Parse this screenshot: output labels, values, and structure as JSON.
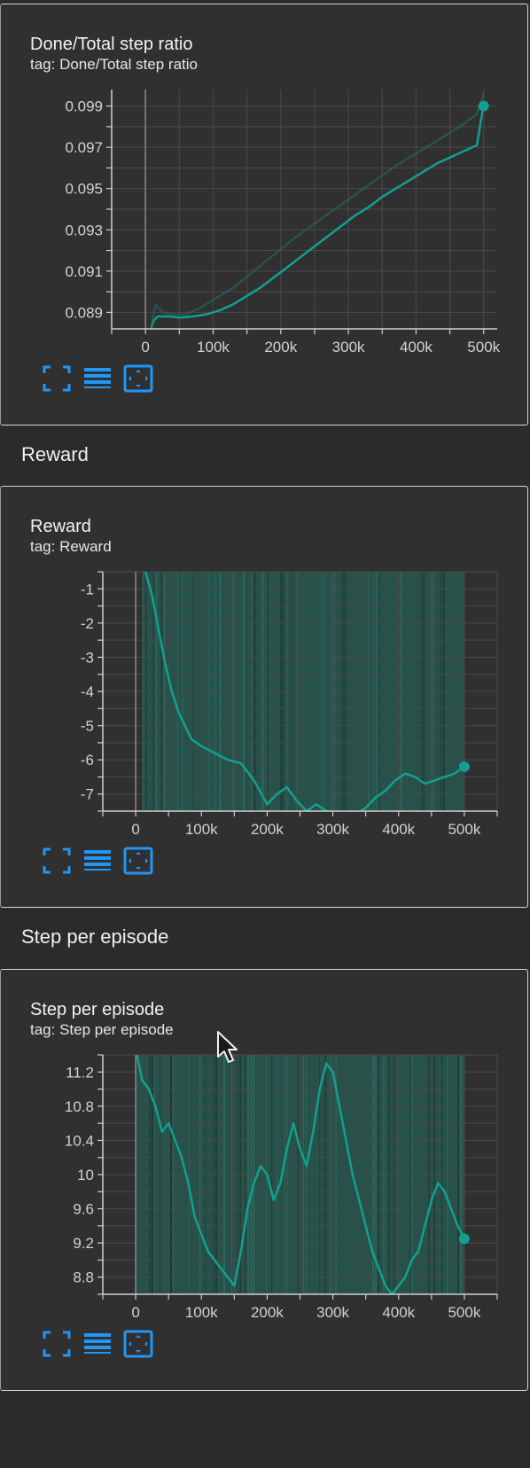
{
  "cards": [
    {
      "title": "Done/Total step ratio",
      "tag": "tag: Done/Total step ratio"
    },
    {
      "title": "Reward",
      "tag": "tag: Reward"
    },
    {
      "title": "Step per episode",
      "tag": "tag: Step per episode"
    }
  ],
  "sections": {
    "reward": "Reward",
    "step_per_episode": "Step per episode"
  },
  "icons": {
    "fit": "fullscreen-icon",
    "log": "list-lines-icon",
    "pan": "fit-domain-icon"
  },
  "colors": {
    "series": "#12a090",
    "series_faint": "#2a6e64",
    "band": "#245c52",
    "icon": "#2196f3",
    "grid": "#4a4a4a",
    "axis": "#cfcfcf",
    "card_bg": "#303030",
    "page_bg": "#2b2b2b"
  },
  "chart_data": [
    {
      "type": "line",
      "title": "Done/Total step ratio",
      "xlabel": "",
      "ylabel": "",
      "xlim": [
        -50000,
        520000
      ],
      "ylim": [
        0.0882,
        0.0998
      ],
      "x_ticks": [
        0,
        100000,
        200000,
        300000,
        400000,
        500000
      ],
      "x_tick_labels": [
        "0",
        "100k",
        "200k",
        "300k",
        "400k",
        "500k"
      ],
      "y_ticks": [
        0.089,
        0.091,
        0.093,
        0.095,
        0.097,
        0.099
      ],
      "y_tick_labels": [
        "0.089",
        "0.091",
        "0.093",
        "0.095",
        "0.097",
        "0.099"
      ],
      "grid": true,
      "series": [
        {
          "role": "smoothed",
          "x": [
            8000,
            12000,
            18000,
            25000,
            35000,
            50000,
            70000,
            90000,
            110000,
            130000,
            150000,
            170000,
            190000,
            210000,
            230000,
            250000,
            270000,
            290000,
            310000,
            330000,
            350000,
            370000,
            390000,
            410000,
            430000,
            450000,
            470000,
            490000,
            500000
          ],
          "y": [
            0.0882,
            0.0886,
            0.0888,
            0.0888,
            0.0888,
            0.08875,
            0.0888,
            0.0889,
            0.0891,
            0.0894,
            0.0898,
            0.0902,
            0.0907,
            0.0912,
            0.0917,
            0.0922,
            0.0927,
            0.0932,
            0.0937,
            0.0941,
            0.0946,
            0.095,
            0.0954,
            0.0958,
            0.0962,
            0.0965,
            0.0968,
            0.0971,
            0.0991
          ]
        },
        {
          "role": "raw",
          "x": [
            8000,
            15000,
            25000,
            40000,
            60000,
            80000,
            100000,
            130000,
            160000,
            190000,
            220000,
            250000,
            280000,
            310000,
            340000,
            370000,
            400000,
            430000,
            460000,
            490000,
            500000
          ],
          "y": [
            0.0882,
            0.0894,
            0.089,
            0.0889,
            0.0889,
            0.0892,
            0.0896,
            0.0902,
            0.091,
            0.0918,
            0.0926,
            0.0933,
            0.094,
            0.0947,
            0.0954,
            0.0961,
            0.0967,
            0.0973,
            0.0979,
            0.0986,
            0.0996
          ]
        }
      ],
      "last_point": {
        "x": 500000,
        "y": 0.099
      }
    },
    {
      "type": "line",
      "title": "Reward",
      "xlabel": "",
      "ylabel": "",
      "xlim": [
        -50000,
        550000
      ],
      "ylim": [
        -7.5,
        -0.5
      ],
      "x_ticks": [
        0,
        100000,
        200000,
        300000,
        400000,
        500000
      ],
      "x_tick_labels": [
        "0",
        "100k",
        "200k",
        "300k",
        "400k",
        "500k"
      ],
      "y_ticks": [
        -1,
        -2,
        -3,
        -4,
        -5,
        -6,
        -7
      ],
      "y_tick_labels": [
        "-1",
        "-2",
        "-3",
        "-4",
        "-5",
        "-6",
        "-7"
      ],
      "grid": true,
      "band": {
        "x_start": 10000,
        "x_end": 500000,
        "y_top": -0.5,
        "y_bottom": -7.5
      },
      "series": [
        {
          "role": "smoothed",
          "x": [
            15000,
            25000,
            35000,
            45000,
            55000,
            65000,
            75000,
            85000,
            100000,
            120000,
            140000,
            160000,
            180000,
            200000,
            215000,
            230000,
            245000,
            260000,
            275000,
            290000,
            305000,
            320000,
            335000,
            350000,
            365000,
            380000,
            395000,
            410000,
            425000,
            440000,
            455000,
            470000,
            485000,
            500000
          ],
          "y": [
            -0.5,
            -1.2,
            -2.2,
            -3.2,
            -4.0,
            -4.6,
            -5.0,
            -5.4,
            -5.6,
            -5.8,
            -6.0,
            -6.1,
            -6.6,
            -7.3,
            -7.0,
            -6.8,
            -7.2,
            -7.5,
            -7.3,
            -7.5,
            -7.6,
            -7.55,
            -7.6,
            -7.4,
            -7.1,
            -6.9,
            -6.6,
            -6.4,
            -6.5,
            -6.7,
            -6.6,
            -6.5,
            -6.4,
            -6.2
          ]
        }
      ],
      "last_point": {
        "x": 500000,
        "y": -6.2
      }
    },
    {
      "type": "line",
      "title": "Step per episode",
      "xlabel": "",
      "ylabel": "",
      "xlim": [
        -50000,
        550000
      ],
      "ylim": [
        8.6,
        11.4
      ],
      "x_ticks": [
        0,
        100000,
        200000,
        300000,
        400000,
        500000
      ],
      "x_tick_labels": [
        "0",
        "100k",
        "200k",
        "300k",
        "400k",
        "500k"
      ],
      "y_ticks": [
        8.8,
        9.2,
        9.6,
        10,
        10.4,
        10.8,
        11.2
      ],
      "y_tick_labels": [
        "8.8",
        "9.2",
        "9.6",
        "10",
        "10.4",
        "10.8",
        "11.2"
      ],
      "grid": true,
      "band": {
        "x_start": 0,
        "x_end": 500000,
        "y_top": 11.4,
        "y_bottom": 8.6
      },
      "series": [
        {
          "role": "smoothed",
          "x": [
            2000,
            10000,
            20000,
            30000,
            40000,
            50000,
            60000,
            70000,
            80000,
            90000,
            100000,
            110000,
            120000,
            130000,
            140000,
            150000,
            160000,
            170000,
            180000,
            190000,
            200000,
            210000,
            220000,
            230000,
            240000,
            250000,
            260000,
            270000,
            280000,
            290000,
            300000,
            310000,
            320000,
            330000,
            340000,
            350000,
            360000,
            370000,
            380000,
            390000,
            400000,
            410000,
            420000,
            430000,
            440000,
            450000,
            460000,
            470000,
            480000,
            490000,
            500000
          ],
          "y": [
            11.4,
            11.1,
            11.0,
            10.8,
            10.5,
            10.6,
            10.4,
            10.2,
            9.9,
            9.5,
            9.3,
            9.1,
            9.0,
            8.9,
            8.8,
            8.7,
            9.1,
            9.6,
            9.9,
            10.1,
            10.0,
            9.7,
            9.9,
            10.3,
            10.6,
            10.3,
            10.1,
            10.5,
            11.0,
            11.3,
            11.2,
            10.8,
            10.4,
            10.0,
            9.7,
            9.4,
            9.1,
            8.9,
            8.7,
            8.6,
            8.7,
            8.8,
            9.0,
            9.1,
            9.4,
            9.7,
            9.9,
            9.8,
            9.6,
            9.4,
            9.25
          ]
        }
      ],
      "last_point": {
        "x": 500000,
        "y": 9.25
      }
    }
  ]
}
